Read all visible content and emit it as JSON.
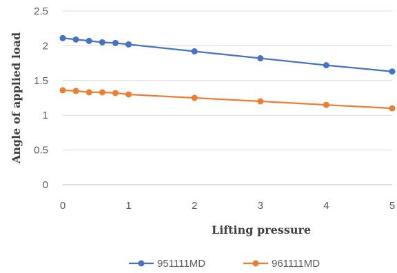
{
  "chart_data": {
    "type": "line",
    "xlabel": "Lifting pressure",
    "ylabel": "Angle of applied load",
    "xlim": [
      0,
      5
    ],
    "ylim": [
      0,
      2.5
    ],
    "x_ticks": [
      "0",
      "1",
      "2",
      "3",
      "4",
      "5"
    ],
    "y_ticks": [
      "0",
      "0.5",
      "1",
      "1.5",
      "2",
      "2.5"
    ],
    "grid": "horizontal",
    "legend": "bottom",
    "series": [
      {
        "name": "951111MD",
        "color": "#4472C4",
        "x": [
          0,
          0.2,
          0.4,
          0.6,
          0.8,
          1,
          2,
          3,
          4,
          5
        ],
        "y": [
          2.11,
          2.09,
          2.07,
          2.05,
          2.04,
          2.02,
          1.92,
          1.82,
          1.72,
          1.63
        ]
      },
      {
        "name": "961111MD",
        "color": "#ED7D31",
        "x": [
          0,
          0.2,
          0.4,
          0.6,
          0.8,
          1,
          2,
          3,
          4,
          5
        ],
        "y": [
          1.36,
          1.35,
          1.33,
          1.33,
          1.32,
          1.3,
          1.25,
          1.2,
          1.15,
          1.1
        ]
      }
    ]
  }
}
